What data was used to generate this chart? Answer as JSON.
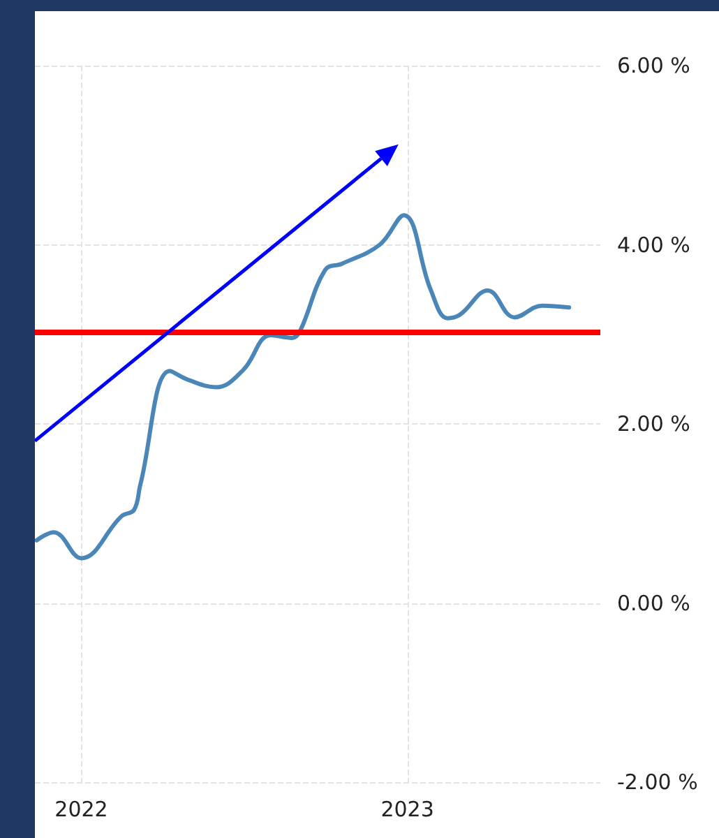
{
  "chart_data": {
    "type": "line",
    "x": [
      "2021-11-12",
      "2021-12-01",
      "2022-01-01",
      "2022-02-15",
      "2022-03-01",
      "2022-03-08",
      "2022-04-10",
      "2022-05-01",
      "2022-06-01",
      "2022-07-01",
      "2022-08-01",
      "2022-08-25",
      "2022-09-03",
      "2022-10-01",
      "2022-10-20",
      "2022-12-01",
      "2022-12-28",
      "2023-01-27",
      "2023-02-15",
      "2023-03-01",
      "2023-04-01",
      "2023-05-01",
      "2023-06-01",
      "2023-07-01"
    ],
    "series": [
      {
        "color": "#4a86b8",
        "values": [
          0.7,
          0.79,
          0.5,
          0.97,
          1.04,
          1.32,
          2.59,
          2.49,
          2.41,
          2.6,
          2.99,
          2.96,
          3.04,
          3.72,
          3.79,
          4.0,
          4.33,
          3.5,
          3.18,
          3.22,
          3.49,
          3.19,
          3.32,
          3.3
        ]
      }
    ],
    "xlim": [
      "2021-11-10",
      "2023-08-05"
    ],
    "xticks": [
      "2022",
      "2023"
    ],
    "ylim": [
      -2,
      6
    ],
    "yticks": [
      {
        "value": -2,
        "label": "-2.00 %"
      },
      {
        "value": 0,
        "label": "0.00 %"
      },
      {
        "value": 2,
        "label": "2.00 %"
      },
      {
        "value": 4,
        "label": "4.00 %"
      },
      {
        "value": 6,
        "label": "6.00 %"
      }
    ],
    "ref_lines": [
      {
        "axis": "y",
        "value": 3.03,
        "label": null,
        "color": "#ff0000"
      }
    ],
    "grid": true,
    "marker": "none"
  }
}
